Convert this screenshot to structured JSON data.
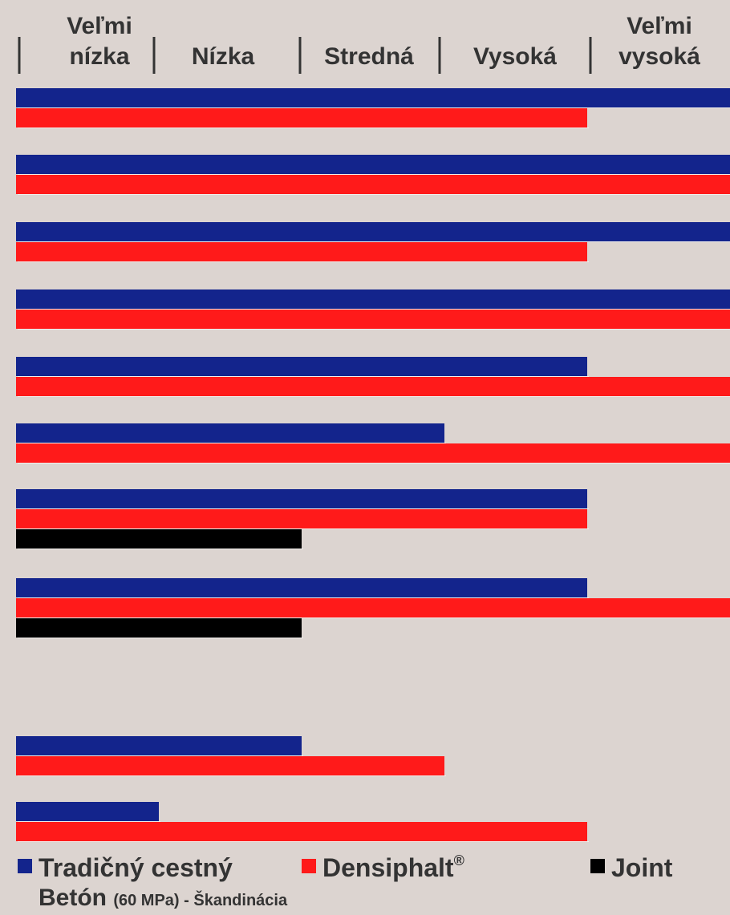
{
  "chart_data": {
    "type": "bar",
    "orientation": "horizontal",
    "scale_labels": [
      [
        "Veľmi",
        "nízka"
      ],
      [
        "Nízka"
      ],
      [
        "Stredná"
      ],
      [
        "Vysoká"
      ],
      [
        "Veľmi",
        "vysoká"
      ]
    ],
    "xlim": [
      0,
      5
    ],
    "grid": false,
    "legend_position": "bottom",
    "colors": {
      "background": "#dcd4d0",
      "traditional": "#13248c",
      "densiphalt": "#ff1a1a",
      "joint": "#000000",
      "text": "#333333"
    },
    "series": [
      {
        "key": "traditional",
        "values": [
          5,
          5,
          5,
          5,
          4,
          3,
          4,
          4,
          2,
          1
        ]
      },
      {
        "key": "densiphalt",
        "values": [
          4,
          5,
          4,
          5,
          5,
          5,
          4,
          5,
          3,
          4
        ]
      },
      {
        "key": "joint",
        "values": [
          null,
          null,
          null,
          null,
          null,
          null,
          2,
          2,
          null,
          null
        ]
      }
    ],
    "groups": 10
  },
  "legend": {
    "traditional_label": "Tradičný cestný",
    "traditional_sub_main": "Betón",
    "traditional_sub_small": "(60 MPa) - Škandinácia",
    "densiphalt_label": "Densiphalt",
    "densiphalt_sup": "®",
    "joint_label": "Joint"
  }
}
